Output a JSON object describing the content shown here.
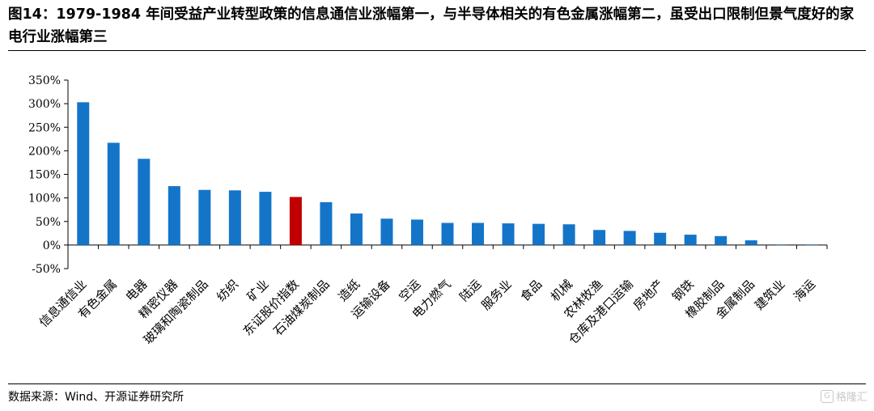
{
  "header": {
    "title": "图14：1979-1984 年间受益产业转型政策的信息通信业涨幅第一，与半导体相关的有色金属涨幅第二，虽受出口限制但景气度好的家电行业涨幅第三"
  },
  "footer": {
    "source": "数据来源：Wind、开源证券研究所",
    "watermark": "格隆汇"
  },
  "colors": {
    "bar": "#1475C8",
    "highlight": "#C00000",
    "axis": "#000000"
  },
  "chart_data": {
    "type": "bar",
    "title": "",
    "xlabel": "",
    "ylabel": "",
    "ylim": [
      -50,
      350
    ],
    "yticks": [
      -50,
      0,
      50,
      100,
      150,
      200,
      250,
      300,
      350
    ],
    "ytick_labels": [
      "-50%",
      "0%",
      "50%",
      "100%",
      "150%",
      "200%",
      "250%",
      "300%",
      "350%"
    ],
    "categories": [
      "信息通信业",
      "有色金属",
      "电器",
      "精密仪器",
      "玻璃和陶瓷制品",
      "纺织",
      "矿业",
      "东证股价指数",
      "石油煤炭制品",
      "造纸",
      "运输设备",
      "空运",
      "电力燃气",
      "陆运",
      "服务业",
      "食品",
      "机械",
      "农林牧渔",
      "仓库及港口运输",
      "房地产",
      "钢铁",
      "橡胶制品",
      "金属制品",
      "建筑业",
      "海运"
    ],
    "values": [
      303,
      217,
      183,
      125,
      117,
      116,
      113,
      102,
      91,
      67,
      56,
      54,
      47,
      47,
      46,
      45,
      44,
      32,
      30,
      26,
      22,
      19,
      10,
      -1,
      -1
    ],
    "highlight_category": "东证股价指数",
    "grid": false,
    "legend": "none"
  }
}
